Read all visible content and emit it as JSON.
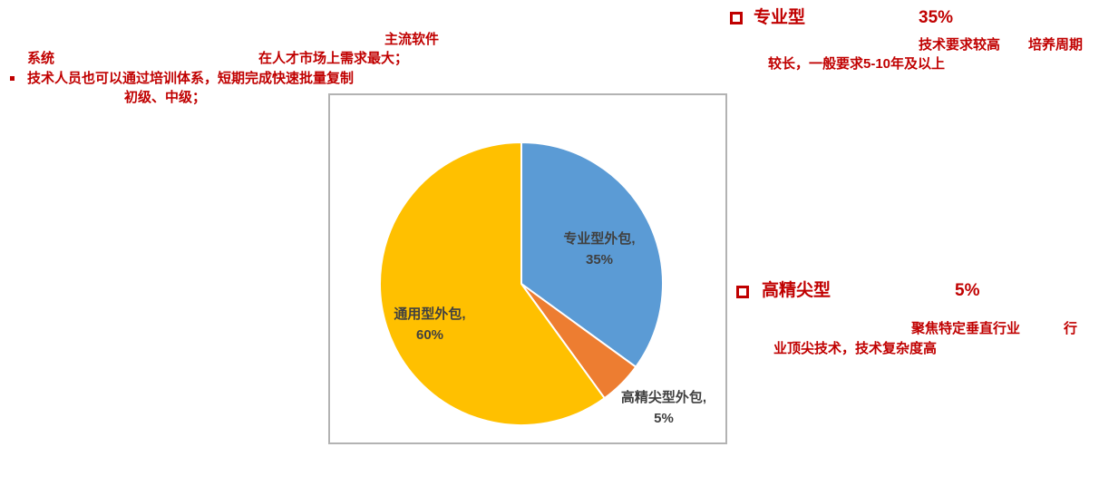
{
  "colors": {
    "accent_red": "#C00000",
    "pie_blue": "#5B9BD5",
    "pie_orange": "#ED7D31",
    "pie_yellow": "#FFC000",
    "label_gray": "#404040",
    "frame_gray": "#b3b3b3",
    "page_bg": "#ffffff"
  },
  "icons": {
    "hollow_square_bullet": "red outlined square",
    "small_square_bullet": "small filled red square"
  },
  "annotations": {
    "top_left": {
      "title": "主流软件",
      "line_system": "系统",
      "line_demand": "在人才市场上需求最大；",
      "line_training": "技术人员也可以通过培训体系，短期完成快速批量复制",
      "line_levels": "初级、中级；"
    },
    "professional": {
      "heading": "专业型",
      "percent": "35%",
      "desc_line1a": "技术要求较高",
      "desc_line1b": "培养周期",
      "desc_line2": "较长，一般要求5-10年及以上"
    },
    "high_end": {
      "heading": "高精尖型",
      "percent": "5%",
      "desc_line1a": "聚焦特定垂直行业",
      "desc_line1b": "行",
      "desc_line2": "业顶尖技术，技术复杂度高"
    }
  },
  "chart_data": {
    "type": "pie",
    "categories": [
      "专业型外包",
      "高精尖型外包",
      "通用型外包"
    ],
    "values": [
      35,
      5,
      60
    ],
    "unit": "%",
    "colors": [
      "#5B9BD5",
      "#ED7D31",
      "#FFC000"
    ],
    "start_angle": "top",
    "direction": "clockwise",
    "slice_border_color": "#ffffff",
    "label_color": "#404040",
    "has_frame": true,
    "legend": "none",
    "slice_labels": [
      {
        "line1": "专业型外包,",
        "line2": "35%"
      },
      {
        "line1": "高精尖型外包,",
        "line2": "5%"
      },
      {
        "line1": "通用型外包,",
        "line2": "60%"
      }
    ]
  }
}
